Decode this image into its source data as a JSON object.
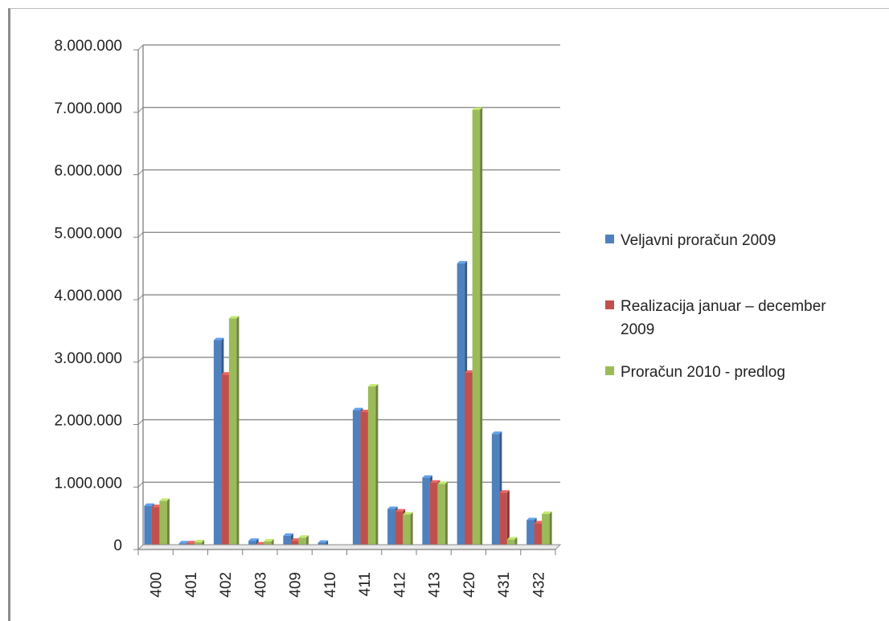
{
  "chart_data": {
    "type": "bar",
    "categories": [
      "400",
      "401",
      "402",
      "403",
      "409",
      "410",
      "411",
      "412",
      "413",
      "420",
      "431",
      "432"
    ],
    "series": [
      {
        "name": "Veljavni proračun 2009",
        "color": "#4f81bd",
        "values": [
          700000,
          100000,
          3350000,
          140000,
          220000,
          110000,
          2230000,
          650000,
          1150000,
          4580000,
          1850000,
          470000
        ]
      },
      {
        "name": "Realizacija januar – december 2009",
        "color": "#c0504d",
        "values": [
          680000,
          100000,
          2800000,
          80000,
          140000,
          40000,
          2200000,
          610000,
          1070000,
          2830000,
          910000,
          420000
        ]
      },
      {
        "name": "Proračun 2010 - predlog",
        "color": "#9bbb59",
        "values": [
          780000,
          115000,
          3700000,
          130000,
          190000,
          40000,
          2610000,
          560000,
          1050000,
          7040000,
          160000,
          570000
        ]
      }
    ],
    "ylim": [
      0,
      8000000
    ],
    "yticks": [
      "0",
      "1.000.000",
      "2.000.000",
      "3.000.000",
      "4.000.000",
      "5.000.000",
      "6.000.000",
      "7.000.000",
      "8.000.000"
    ],
    "grid": true,
    "legend_position": "right",
    "xlabel": "",
    "ylabel": "",
    "title": ""
  },
  "legend": {
    "item1": "Veljavni proračun 2009",
    "item2_line1": "Realizacija januar – december",
    "item2_line2": "2009",
    "item3": "Proračun 2010 - predlog"
  }
}
